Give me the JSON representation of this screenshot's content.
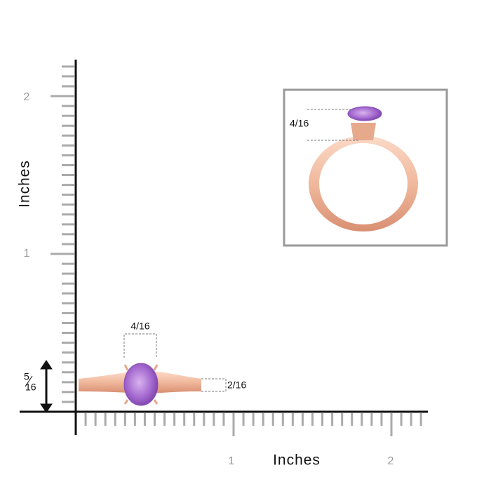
{
  "y_axis": {
    "label": "Inches",
    "tick_labels": [
      "1",
      "2"
    ]
  },
  "x_axis": {
    "label": "Inches",
    "tick_labels": [
      "1",
      "2"
    ]
  },
  "dimensions": {
    "stone_width": "4/16",
    "band_width": "2/16",
    "height_numerator": "5",
    "height_denominator": "16",
    "inset_height": "4/16"
  }
}
